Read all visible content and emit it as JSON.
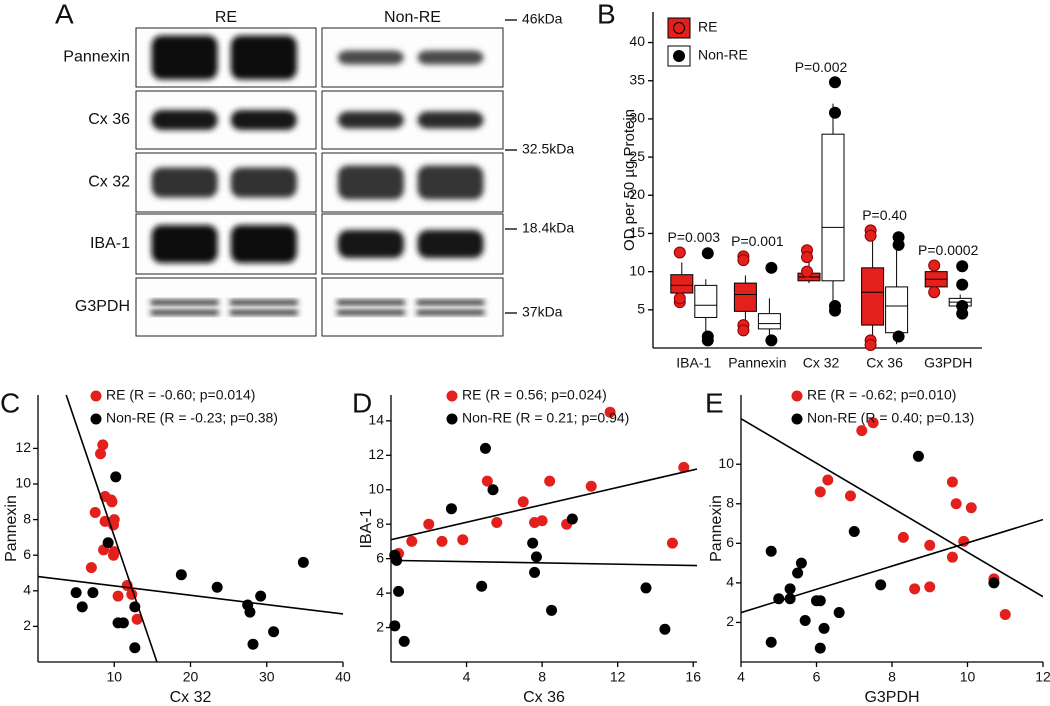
{
  "blot": {
    "label": "A",
    "columns": [
      "RE",
      "Non-RE"
    ],
    "rows": [
      "Pannexin",
      "Cx 36",
      "Cx 32",
      "IBA-1",
      "G3PDH"
    ],
    "markers": [
      "46kDa",
      "32.5kDa",
      "18.4kDa",
      "37kDa"
    ]
  },
  "chart_data": [
    {
      "type": "box",
      "panel": "B",
      "ylabel": "OD per 50 µg Protein",
      "categories": [
        "IBA-1",
        "Pannexin",
        "Cx 32",
        "Cx 36",
        "G3PDH"
      ],
      "ylim": [
        0,
        44
      ],
      "yticks": [
        5,
        10,
        15,
        20,
        25,
        30,
        35,
        40
      ],
      "legend": "top-left",
      "annotations": [
        "P=0.003",
        "P=0.001",
        "P=0.002",
        "P=0.40",
        "P=0.0002"
      ],
      "series": [
        {
          "name": "RE",
          "color": "#e3201b",
          "point_color": "#e3201b",
          "min": [
            6.2,
            3.5,
            8.5,
            1.0,
            8.0
          ],
          "q1": [
            7.2,
            4.8,
            8.8,
            3.0,
            8.0
          ],
          "median": [
            8.2,
            7.0,
            9.3,
            7.3,
            9.0
          ],
          "q3": [
            9.6,
            8.5,
            9.8,
            10.5,
            10.0
          ],
          "max": [
            11.2,
            9.5,
            11.5,
            14.8,
            10.5
          ],
          "outliers": [
            [
              12.5,
              6.0,
              6.5
            ],
            [
              12.0,
              11.5,
              3.0,
              2.3
            ],
            [
              12.8,
              11.9,
              10.0
            ],
            [
              15.4,
              14.7,
              1.0,
              0.4
            ],
            [
              10.8,
              7.3
            ]
          ]
        },
        {
          "name": "Non-RE",
          "color": "#ffffff",
          "point_color": "#000000",
          "min": [
            2.0,
            1.0,
            5.5,
            0.5,
            5.2
          ],
          "q1": [
            4.0,
            2.5,
            8.8,
            2.0,
            5.5
          ],
          "median": [
            5.6,
            3.2,
            15.8,
            5.5,
            6.0
          ],
          "q3": [
            8.2,
            4.5,
            28.0,
            8.0,
            6.5
          ],
          "max": [
            9.0,
            6.5,
            32.0,
            13.5,
            7.0
          ],
          "outliers": [
            [
              12.4,
              1.5,
              1.0
            ],
            [
              10.5,
              1.0
            ],
            [
              34.8,
              30.8,
              5.5,
              4.9
            ],
            [
              14.5,
              13.5,
              1.5
            ],
            [
              10.7,
              8.3,
              5.5,
              4.5
            ]
          ]
        }
      ]
    },
    {
      "type": "scatter",
      "panel": "C",
      "xlabel": "Cx 32",
      "ylabel": "Pannexin",
      "xlim": [
        0,
        40
      ],
      "ylim": [
        0,
        15
      ],
      "xticks": [
        10,
        20,
        30,
        40
      ],
      "yticks": [
        2,
        4,
        6,
        8,
        10,
        12
      ],
      "series": [
        {
          "name": "RE (R = -0.60; p=0.014)",
          "color": "#e3201b",
          "x": [
            8.5,
            8.2,
            8.8,
            9.6,
            7.5,
            9.7,
            10.0,
            8.8,
            9.9,
            8.6,
            10.0,
            9.9,
            7.0,
            11.7,
            12.3,
            10.5,
            13.0
          ],
          "y": [
            12.2,
            11.7,
            9.3,
            9.1,
            8.4,
            9.0,
            8.0,
            7.9,
            7.7,
            6.3,
            6.2,
            6.0,
            5.3,
            4.3,
            3.8,
            3.7,
            2.4
          ],
          "fit": {
            "x": [
              3.7,
              15.6
            ],
            "y": [
              15,
              0
            ]
          }
        },
        {
          "name": "Non-RE (R = -0.23; p=0.38)",
          "color": "#000000",
          "x": [
            10.2,
            9.2,
            5.0,
            5.8,
            7.2,
            11.2,
            12.7,
            12.7,
            18.8,
            23.5,
            27.5,
            27.8,
            29.2,
            28.2,
            30.9,
            34.8,
            10.5
          ],
          "y": [
            10.4,
            6.7,
            3.9,
            3.1,
            3.9,
            2.2,
            3.1,
            0.8,
            4.9,
            4.2,
            3.2,
            2.8,
            3.7,
            1.0,
            1.7,
            5.6,
            2.2
          ],
          "fit": {
            "x": [
              0,
              40
            ],
            "y": [
              4.8,
              2.7
            ]
          }
        }
      ]
    },
    {
      "type": "scatter",
      "panel": "D",
      "xlabel": "Cx 36",
      "ylabel": "IBA-1",
      "xlim": [
        0,
        16.2
      ],
      "ylim": [
        0,
        15.5
      ],
      "xticks": [
        4,
        8,
        12,
        16
      ],
      "yticks": [
        2,
        4,
        6,
        8,
        10,
        12,
        14
      ],
      "series": [
        {
          "name": "RE (R = 0.56; p=0.024)",
          "color": "#e3201b",
          "x": [
            0.4,
            1.1,
            2.0,
            2.7,
            3.8,
            5.1,
            5.6,
            7.0,
            7.6,
            8.0,
            8.4,
            9.3,
            10.6,
            11.6,
            14.9,
            15.5
          ],
          "y": [
            6.3,
            7.0,
            8.0,
            7.0,
            7.1,
            10.5,
            8.1,
            9.3,
            8.1,
            8.2,
            10.5,
            8.0,
            10.2,
            14.5,
            6.9,
            11.3
          ],
          "fit": {
            "x": [
              0,
              16.2
            ],
            "y": [
              7.1,
              11.2
            ]
          }
        },
        {
          "name": "Non-RE (R = 0.21; p=0.94)",
          "color": "#000000",
          "x": [
            0.2,
            0.3,
            0.4,
            0.2,
            0.7,
            3.2,
            4.8,
            5.0,
            5.4,
            7.5,
            7.6,
            7.7,
            8.5,
            9.6,
            13.5,
            14.5
          ],
          "y": [
            2.1,
            5.9,
            4.1,
            6.2,
            1.2,
            8.9,
            4.4,
            12.4,
            10.0,
            6.9,
            5.2,
            6.1,
            3.0,
            8.3,
            4.3,
            1.9
          ],
          "fit": {
            "x": [
              0,
              16.2
            ],
            "y": [
              5.9,
              5.6
            ]
          }
        }
      ]
    },
    {
      "type": "scatter",
      "panel": "E",
      "xlabel": "G3PDH",
      "ylabel": "Pannexin",
      "xlim": [
        4,
        12
      ],
      "ylim": [
        0,
        13.5
      ],
      "xticks": [
        4,
        6,
        8,
        10,
        12
      ],
      "yticks": [
        2,
        4,
        6,
        8,
        10
      ],
      "series": [
        {
          "name": "RE (R = -0.62; p=0.010)",
          "color": "#e3201b",
          "x": [
            7.2,
            7.5,
            6.3,
            6.1,
            6.9,
            9.6,
            9.7,
            10.1,
            8.3,
            9.0,
            9.6,
            9.9,
            8.6,
            9.0,
            10.7,
            11.0
          ],
          "y": [
            11.7,
            12.1,
            9.2,
            8.6,
            8.4,
            9.1,
            8.0,
            7.8,
            6.3,
            5.9,
            5.3,
            6.1,
            3.7,
            3.8,
            4.2,
            2.4
          ],
          "fit": {
            "x": [
              4,
              12
            ],
            "y": [
              12.3,
              3.3
            ]
          }
        },
        {
          "name": "Non-RE (R = 0.40; p=0.13)",
          "color": "#000000",
          "x": [
            4.8,
            4.8,
            5.0,
            5.3,
            5.3,
            5.5,
            5.6,
            5.7,
            6.0,
            6.1,
            6.2,
            6.6,
            7.0,
            7.7,
            8.7,
            10.7,
            6.1
          ],
          "y": [
            5.6,
            1.0,
            3.2,
            3.2,
            3.7,
            4.5,
            5.0,
            2.1,
            3.1,
            0.7,
            1.7,
            2.5,
            6.6,
            3.9,
            10.4,
            4.0,
            3.1
          ],
          "fit": {
            "x": [
              4,
              12
            ],
            "y": [
              2.5,
              7.2
            ]
          }
        }
      ]
    }
  ]
}
